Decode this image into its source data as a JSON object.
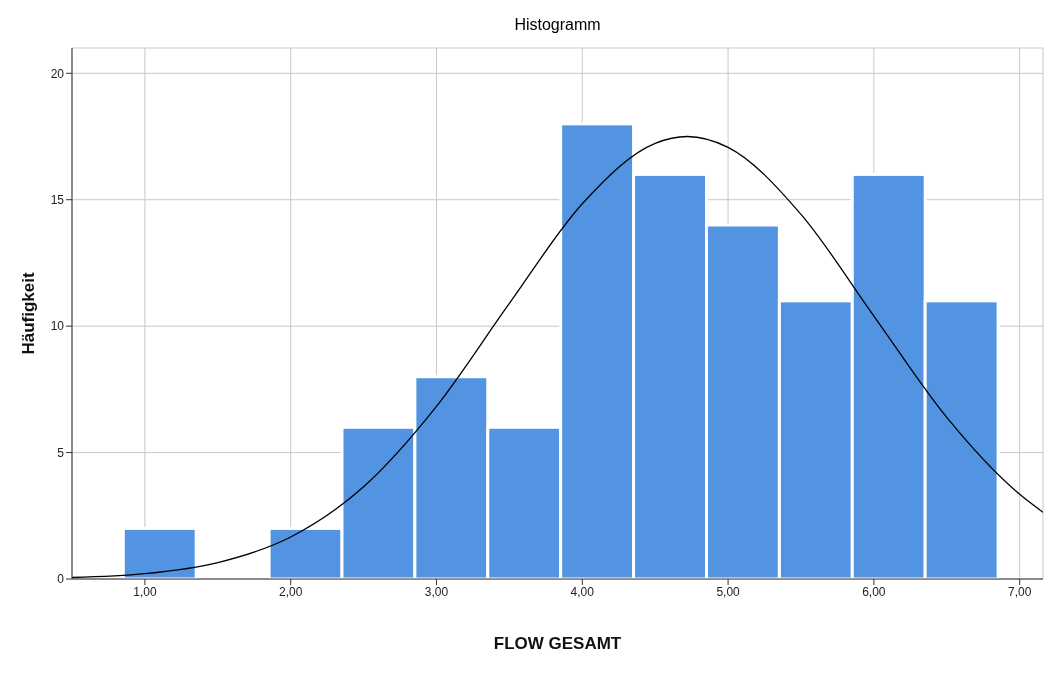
{
  "chart_data": {
    "type": "histogram",
    "title": "Histogramm",
    "xlabel": "FLOW GESAMT",
    "ylabel": "Häufigkeit",
    "color": "#5294e2",
    "bins": [
      0.85,
      1.35,
      1.85,
      2.35,
      2.85,
      3.35,
      3.85,
      4.35,
      4.85,
      5.35,
      5.85,
      6.35,
      6.85
    ],
    "values": [
      2,
      0,
      2,
      6,
      8,
      6,
      18,
      16,
      14,
      11,
      16,
      11
    ],
    "series": [
      {
        "type": "line",
        "color": "#000000",
        "x": [
          0.5,
          1,
          1.5,
          2,
          2.5,
          3,
          3.5,
          4,
          4.5,
          4.72,
          5,
          5.5,
          6,
          6.5,
          7,
          7.16
        ],
        "values": [
          0.06,
          0.21,
          0.65,
          1.66,
          3.65,
          6.83,
          10.9,
          14.84,
          17.23,
          17.5,
          17.07,
          14.42,
          10.4,
          6.39,
          3.35,
          2.64
        ]
      }
    ],
    "xlim": [
      0.5,
      7.16
    ],
    "xticks": [
      {
        "value": 1,
        "label": "1,00"
      },
      {
        "value": 2,
        "label": "2,00"
      },
      {
        "value": 3,
        "label": "3,00"
      },
      {
        "value": 4,
        "label": "4,00"
      },
      {
        "value": 5,
        "label": "5,00"
      },
      {
        "value": 6,
        "label": "6,00"
      },
      {
        "value": 7,
        "label": "7,00"
      }
    ],
    "ylim": [
      0,
      21
    ],
    "yticks": [
      0,
      5,
      10,
      15,
      20
    ],
    "grid": true
  }
}
